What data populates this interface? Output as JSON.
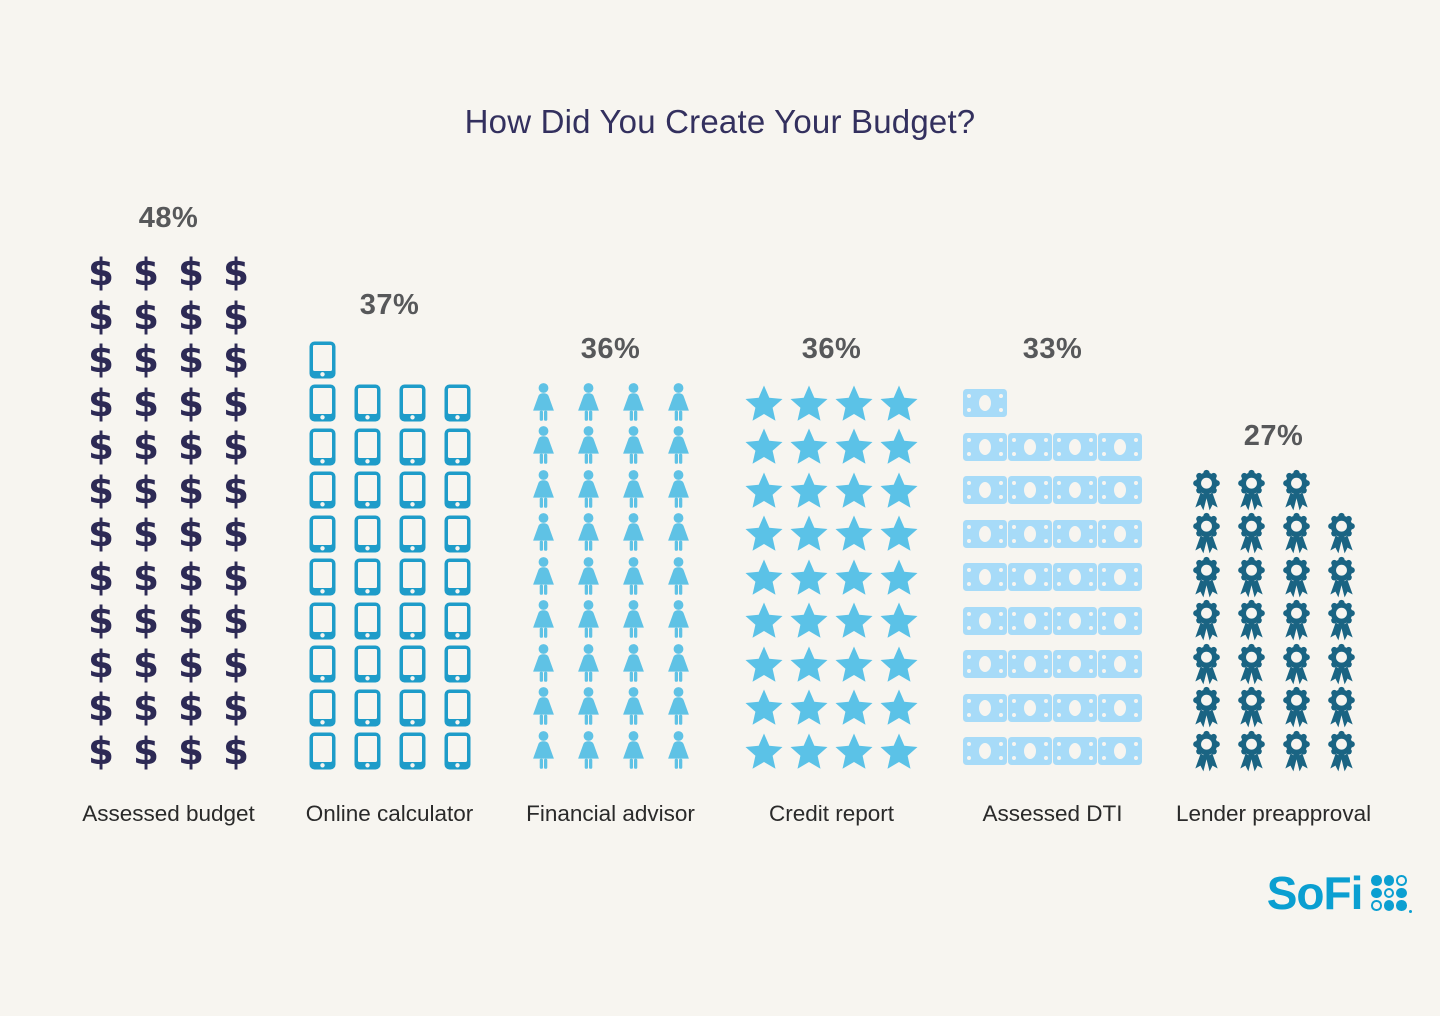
{
  "background_color": "#F7F5F0",
  "title_color": "#33305E",
  "percent_color": "#57585A",
  "label_color": "#2A2A2A",
  "chart_data": {
    "type": "pictogram",
    "title": "How Did You Create Your Budget?",
    "legend": "none",
    "grid": "off",
    "icons_per_row": 4,
    "one_icon_equals": 1,
    "value_unit": "%",
    "ylim": [
      0,
      48
    ],
    "categories": [
      {
        "label": "Assessed budget",
        "value": 48,
        "pct_label": "48%",
        "icon": "dollar-sign-icon",
        "color": "#2D2A55"
      },
      {
        "label": "Online calculator",
        "value": 37,
        "pct_label": "37%",
        "icon": "smartphone-icon",
        "color": "#1E9CC9"
      },
      {
        "label": "Financial advisor",
        "value": 36,
        "pct_label": "36%",
        "icon": "person-icon",
        "color": "#5FC2E5"
      },
      {
        "label": "Credit report",
        "value": 36,
        "pct_label": "36%",
        "icon": "star-icon",
        "color": "#5BC2E7"
      },
      {
        "label": "Assessed DTI",
        "value": 33,
        "pct_label": "33%",
        "icon": "dollar-bill-icon",
        "color": "#A7DBF8"
      },
      {
        "label": "Lender preapproval",
        "value": 27,
        "pct_label": "27%",
        "icon": "award-ribbon-icon",
        "color": "#1A6483"
      }
    ]
  },
  "logo": {
    "text": "SoFi",
    "color": "#0B9FD1",
    "dot_grid": [
      [
        1,
        1,
        0
      ],
      [
        1,
        0,
        1
      ],
      [
        0,
        1,
        1
      ]
    ]
  }
}
